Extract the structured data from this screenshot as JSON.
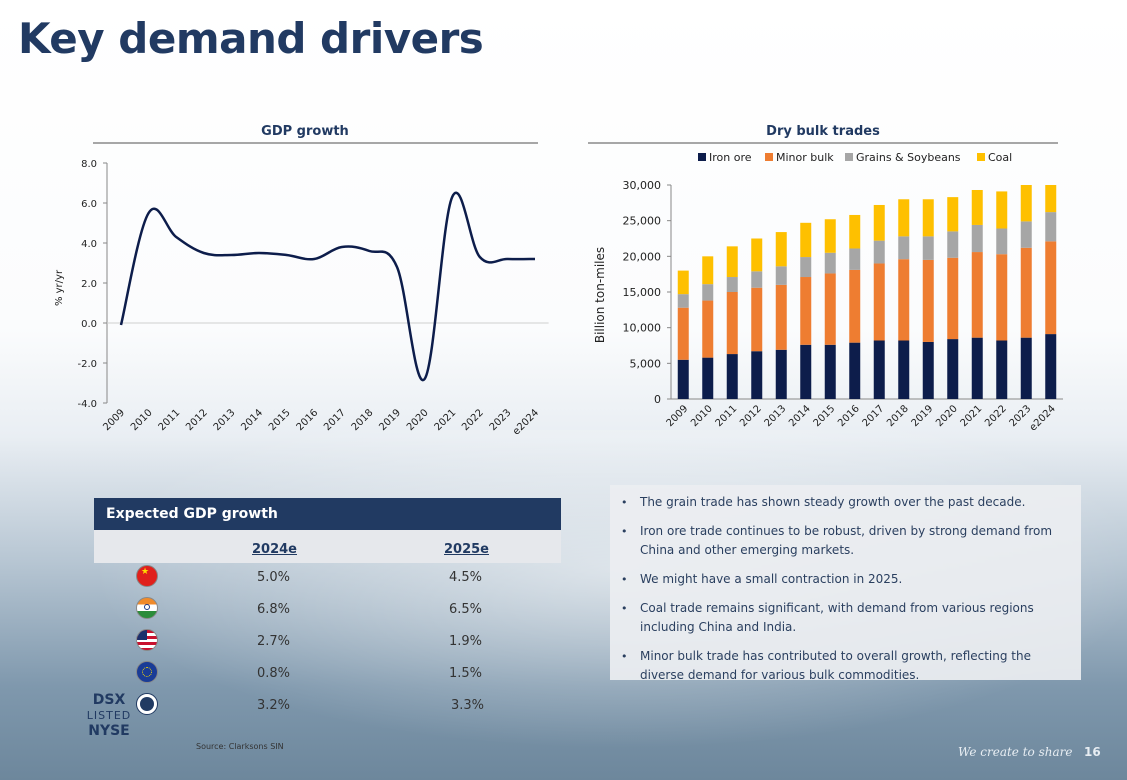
{
  "page": {
    "title": "Key demand drivers",
    "source": "Source: Clarksons SIN",
    "tagline": "We create to share",
    "page_number": "16"
  },
  "chart_data": [
    {
      "type": "line",
      "title": "GDP growth",
      "xlabel": "",
      "ylabel": "% yr/yr",
      "categories": [
        "2009",
        "2010",
        "2011",
        "2012",
        "2013",
        "2014",
        "2015",
        "2016",
        "2017",
        "2018",
        "2019",
        "2020",
        "2021",
        "2022",
        "2023",
        "e2024"
      ],
      "values": [
        -0.1,
        5.5,
        4.3,
        3.5,
        3.4,
        3.5,
        3.4,
        3.2,
        3.8,
        3.6,
        2.8,
        -2.8,
        6.3,
        3.3,
        3.2,
        3.2
      ],
      "yticks": [
        "8.0",
        "6.0",
        "4.0",
        "2.0",
        "0.0",
        "-2.0",
        "-4.0"
      ],
      "ylim": [
        -4,
        8
      ],
      "line_color": "#0d1d4b"
    },
    {
      "type": "bar",
      "stacked": true,
      "title": "Dry bulk trades",
      "xlabel": "",
      "ylabel": "Billion ton-miles",
      "categories": [
        "2009",
        "2010",
        "2011",
        "2012",
        "2013",
        "2014",
        "2015",
        "2016",
        "2017",
        "2018",
        "2019",
        "2020",
        "2021",
        "2022",
        "2023",
        "e2024"
      ],
      "yticks": [
        "30,000",
        "25,000",
        "20,000",
        "15,000",
        "10,000",
        "5,000",
        "0"
      ],
      "ylim": [
        0,
        30000
      ],
      "series": [
        {
          "name": "Iron ore",
          "color": "#0d1d4b",
          "values": [
            5500,
            5800,
            6300,
            6700,
            6900,
            7600,
            7600,
            7900,
            8200,
            8200,
            8000,
            8400,
            8600,
            8200,
            8600,
            9100
          ]
        },
        {
          "name": "Minor bulk",
          "color": "#ee7d31",
          "values": [
            7300,
            8000,
            8700,
            8900,
            9100,
            9500,
            10000,
            10200,
            10800,
            11400,
            11500,
            11400,
            12000,
            12100,
            12600,
            13000
          ]
        },
        {
          "name": "Grains & Soybeans",
          "color": "#a6a6a6",
          "values": [
            1900,
            2300,
            2100,
            2300,
            2600,
            2800,
            2900,
            3000,
            3200,
            3200,
            3300,
            3700,
            3800,
            3600,
            3700,
            4100
          ]
        },
        {
          "name": "Coal",
          "color": "#fec000",
          "values": [
            3300,
            3900,
            4300,
            4600,
            4800,
            4800,
            4700,
            4700,
            5000,
            5200,
            5200,
            4800,
            4900,
            5200,
            5100,
            3800
          ]
        }
      ]
    }
  ],
  "table": {
    "header": "Expected GDP growth",
    "col1": "2024e",
    "col2": "2025e",
    "rows": [
      {
        "flag": "china-flag-icon",
        "v1": "5.0%",
        "v2": "4.5%"
      },
      {
        "flag": "india-flag-icon",
        "v1": "6.8%",
        "v2": "6.5%"
      },
      {
        "flag": "usa-flag-icon",
        "v1": "2.7%",
        "v2": "1.9%"
      },
      {
        "flag": "eu-flag-icon",
        "v1": "0.8%",
        "v2": "1.5%"
      },
      {
        "flag": "globe-icon",
        "v1": "3.2%",
        "v2": "3.3%"
      }
    ]
  },
  "logo": {
    "line1": "DSX",
    "line2": "LISTED",
    "line3": "NYSE"
  },
  "bullets": [
    "The grain trade has shown steady growth over the past decade.",
    "Iron ore trade continues to be robust, driven by strong demand from China and other emerging markets.",
    "We might have a small contraction in 2025.",
    "Coal trade remains significant, with demand from various regions including China and India.",
    "Minor bulk trade has contributed to overall growth, reflecting the diverse demand for various bulk commodities."
  ]
}
